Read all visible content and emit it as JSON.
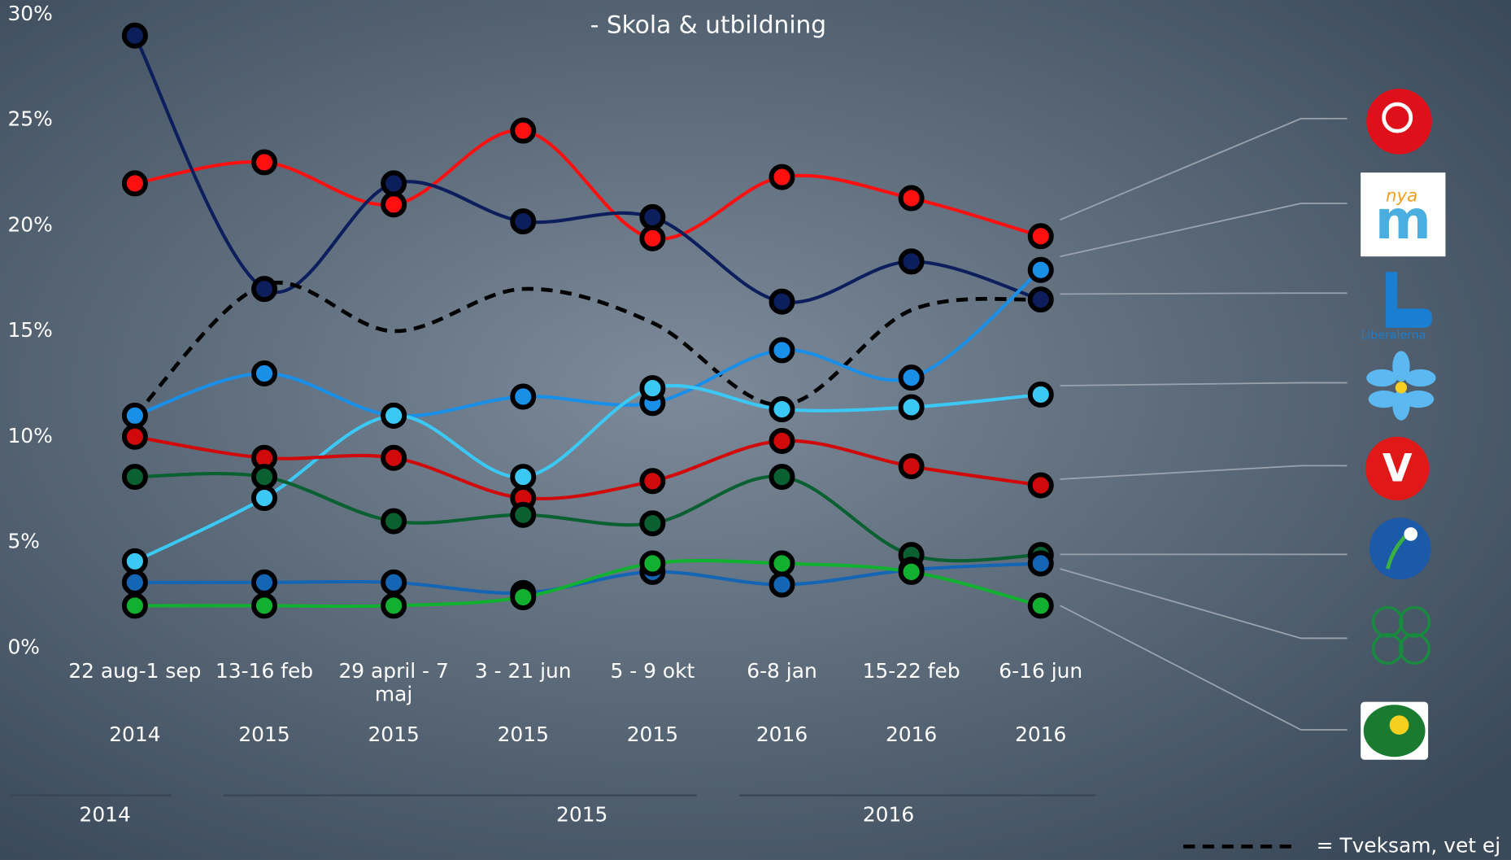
{
  "chart_data": {
    "type": "line",
    "title": "-  Skola & utbildning",
    "categories": [
      "22 aug-1 sep",
      "13-16 feb",
      "29 april - 7 maj",
      "3 - 21 jun",
      "5 - 9 okt",
      "6-8 jan",
      "15-22 feb",
      "6-16 jun"
    ],
    "category_years": [
      "2014",
      "2015",
      "2015",
      "2015",
      "2015",
      "2016",
      "2016",
      "2016"
    ],
    "year_groups": [
      "2014",
      "2015",
      "2016"
    ],
    "ylim": [
      0,
      30
    ],
    "yticks": [
      {
        "value": 0,
        "label": "0%"
      },
      {
        "value": 5,
        "label": "5%"
      },
      {
        "value": 10,
        "label": "10%"
      },
      {
        "value": 15,
        "label": "15%"
      },
      {
        "value": 20,
        "label": "20%"
      },
      {
        "value": 25,
        "label": "25%"
      },
      {
        "value": 30,
        "label": "30%"
      }
    ],
    "series": [
      {
        "color": "#ff1010",
        "values": [
          22,
          23,
          21,
          24.5,
          19.4,
          22.3,
          21.3,
          19.5
        ]
      },
      {
        "color": "#0c1f5c",
        "values": [
          29,
          17,
          22,
          20.2,
          20.4,
          16.4,
          18.3,
          16.5
        ]
      },
      {
        "name": "= Tveksam, vet ej",
        "color": "#000000",
        "style": "dashed",
        "values": [
          11,
          17.2,
          15,
          17,
          15.4,
          11.5,
          16,
          16.5
        ]
      },
      {
        "color": "#1a8fe8",
        "values": [
          11,
          13,
          11,
          11.9,
          11.6,
          14.1,
          12.8,
          17.9
        ]
      },
      {
        "color": "#3cc8f5",
        "values": [
          4.1,
          7.1,
          11,
          8.1,
          12.3,
          11.3,
          11.4,
          12
        ]
      },
      {
        "color": "#d00a0a",
        "values": [
          10,
          9,
          9,
          7.1,
          7.9,
          9.8,
          8.6,
          7.7
        ]
      },
      {
        "color": "#0a6030",
        "values": [
          8.1,
          8.1,
          6,
          6.3,
          5.9,
          8.1,
          4.4,
          4.4
        ]
      },
      {
        "color": "#1565b5",
        "values": [
          3.1,
          3.1,
          3.1,
          2.6,
          3.6,
          3,
          3.7,
          4
        ]
      },
      {
        "color": "#12b030",
        "values": [
          2,
          2,
          2,
          2.4,
          4,
          4,
          3.6,
          2
        ]
      }
    ],
    "logo_texts": [
      "nya",
      "m",
      "Liberalerna",
      "V"
    ]
  }
}
